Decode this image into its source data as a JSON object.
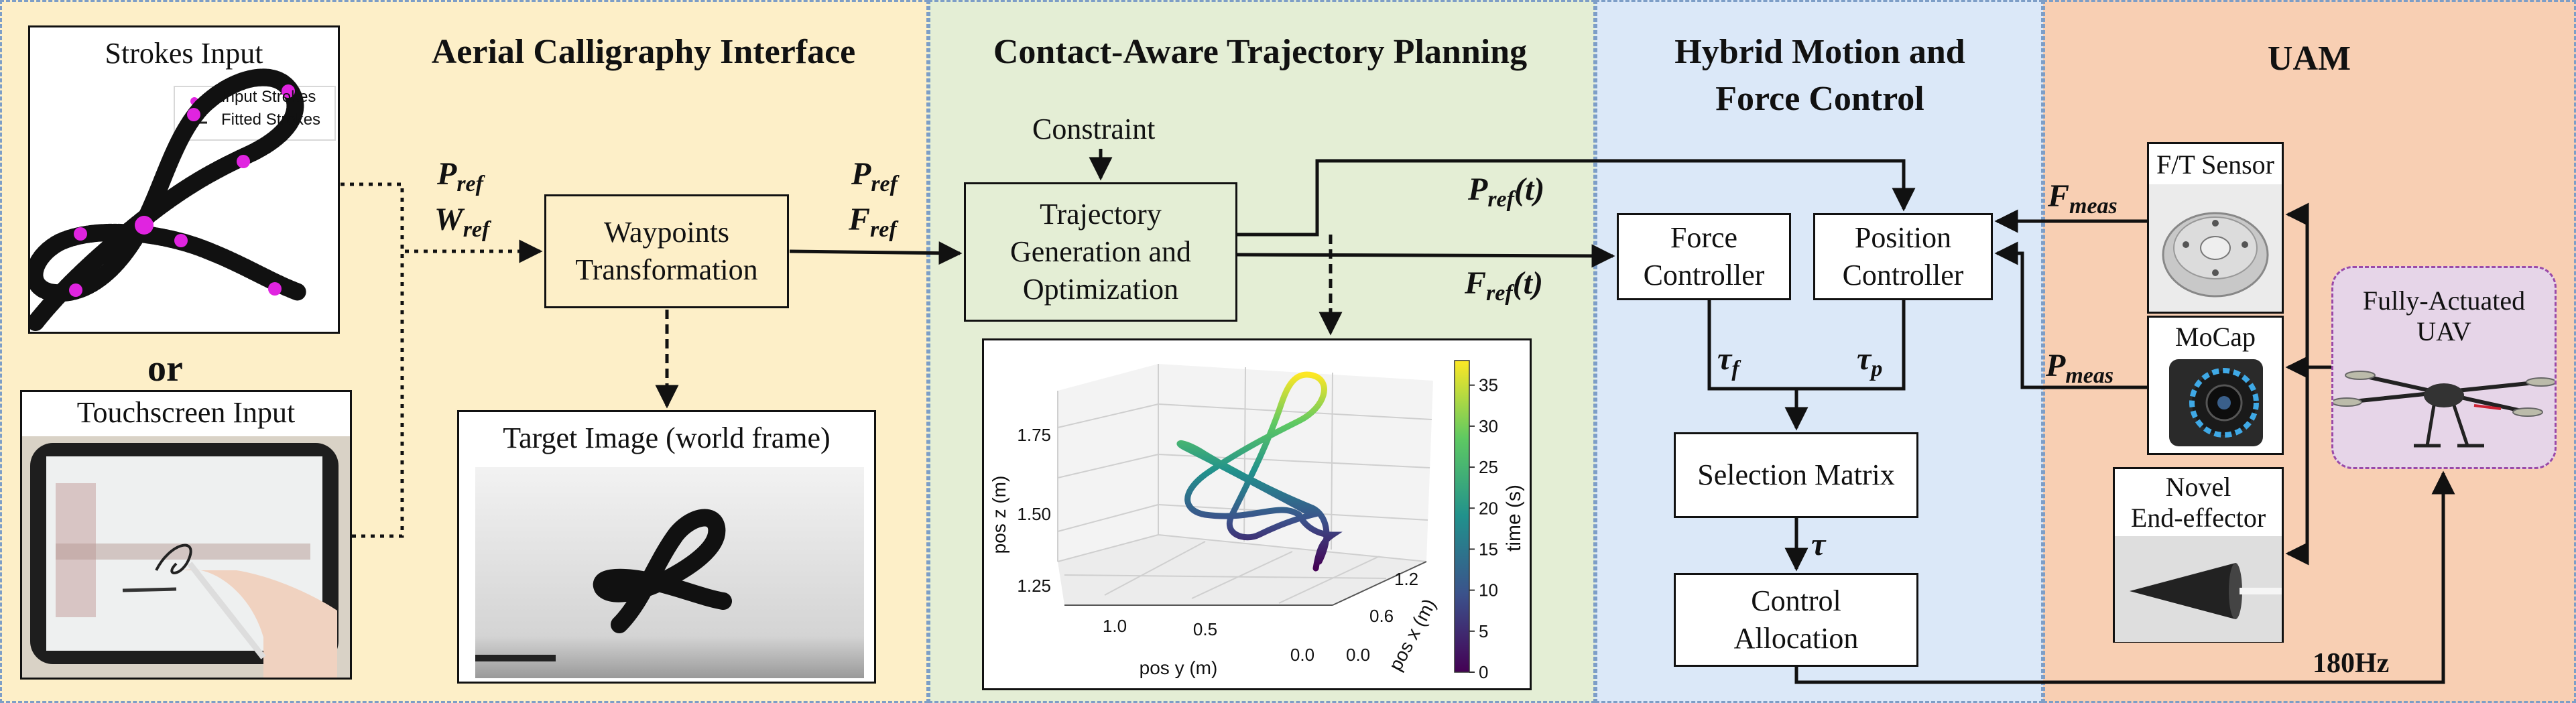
{
  "panels": {
    "interface": {
      "title": "Aerial Calligraphy Interface",
      "color": "#fdefc8"
    },
    "planning": {
      "title": "Contact-Aware Trajectory Planning",
      "color": "#e4eed5"
    },
    "control": {
      "title_line1": "Hybrid Motion and",
      "title_line2": "Force Control",
      "color": "#dbe8f8"
    },
    "uam": {
      "title": "UAM",
      "color": "#f8cfb3"
    }
  },
  "strokes_input": {
    "title": "Strokes Input",
    "legend": [
      "Input Strokes",
      "Fitted Strokes"
    ]
  },
  "or_label": "or",
  "touchscreen_input": {
    "title": "Touchscreen Input"
  },
  "waypoints_box": {
    "line1": "Waypoints",
    "line2": "Transformation"
  },
  "target_image": {
    "title": "Target Image (world frame)"
  },
  "constraint_label": "Constraint",
  "trajectory_box": {
    "line1": "Trajectory",
    "line2": "Generation and",
    "line3": "Optimization"
  },
  "signals": {
    "p_ref": {
      "main": "P",
      "sub": "ref"
    },
    "w_ref": {
      "main": "W",
      "sub": "ref"
    },
    "f_ref": {
      "main": "F",
      "sub": "ref"
    },
    "p_ref_t": {
      "main": "P",
      "sub": "ref",
      "tail": "(t)"
    },
    "f_ref_t": {
      "main": "F",
      "sub": "ref",
      "tail": "(t)"
    },
    "tau_f": {
      "main": "τ",
      "sub": "f"
    },
    "tau_p": {
      "main": "τ",
      "sub": "p"
    },
    "tau": {
      "main": "τ"
    },
    "f_meas": {
      "main": "F",
      "sub": "meas"
    },
    "p_meas": {
      "main": "P",
      "sub": "meas"
    }
  },
  "control_boxes": {
    "force_controller": {
      "line1": "Force",
      "line2": "Controller"
    },
    "position_controller": {
      "line1": "Position",
      "line2": "Controller"
    },
    "selection_matrix": "Selection Matrix",
    "control_allocation": {
      "line1": "Control",
      "line2": "Allocation"
    }
  },
  "uam_items": {
    "ft_sensor": "F/T Sensor",
    "mocap": "MoCap",
    "end_effector": {
      "line1": "Novel",
      "line2": "End-effector"
    },
    "uav": {
      "line1": "Fully-Actuated",
      "line2": "UAV"
    }
  },
  "rate_label": "180Hz",
  "chart_data": {
    "type": "line",
    "projection": "3d",
    "xlabel": "pos x (m)",
    "ylabel": "pos y (m)",
    "zlabel": "pos z (m)",
    "colorbar_label": "time (s)",
    "colorbar_ticks": [
      0,
      5,
      10,
      15,
      20,
      25,
      30,
      35
    ],
    "x_ticks": [
      "0.0",
      "0.6",
      "1.2"
    ],
    "y_ticks": [
      "1.0",
      "0.5",
      "0.0"
    ],
    "z_ticks": [
      "1.25",
      "1.50",
      "1.75"
    ],
    "clim": [
      0,
      38
    ],
    "colormap": "viridis",
    "grid": true
  }
}
